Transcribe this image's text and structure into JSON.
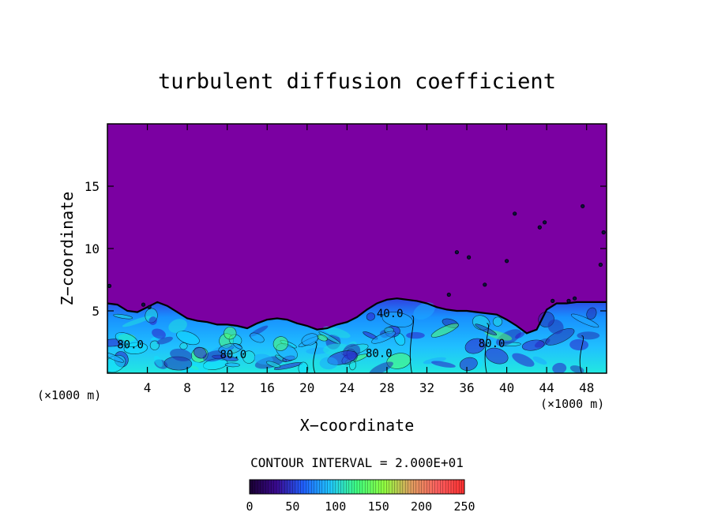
{
  "chart_data": {
    "type": "heatmap",
    "title": "turbulent diffusion coefficient",
    "xlabel": "X−coordinate",
    "ylabel": "Z−coordinate",
    "x_unit_left": "(×1000 m)",
    "x_unit_right": "(×1000 m)",
    "xlim": [
      0,
      50
    ],
    "ylim": [
      0,
      20
    ],
    "xticks": [
      4,
      8,
      12,
      16,
      20,
      24,
      28,
      32,
      36,
      40,
      44,
      48
    ],
    "yticks": [
      5,
      10,
      15
    ],
    "contour_interval_text": "CONTOUR INTERVAL = 2.000E+01",
    "contour_labels": [
      {
        "text": "80.0",
        "x": 2.3,
        "z": 2.0
      },
      {
        "text": "80.0",
        "x": 12.6,
        "z": 1.2
      },
      {
        "text": "80.0",
        "x": 27.2,
        "z": 1.3
      },
      {
        "text": "40.0",
        "x": 28.3,
        "z": 4.5
      },
      {
        "text": "80.0",
        "x": 38.5,
        "z": 2.1
      }
    ],
    "boundary_layer_top": [
      [
        0,
        5.6
      ],
      [
        1,
        5.5
      ],
      [
        2,
        5.0
      ],
      [
        3,
        4.9
      ],
      [
        4,
        5.3
      ],
      [
        5,
        5.7
      ],
      [
        6,
        5.4
      ],
      [
        7,
        4.9
      ],
      [
        8,
        4.4
      ],
      [
        9,
        4.2
      ],
      [
        10,
        4.1
      ],
      [
        11,
        3.9
      ],
      [
        12,
        3.9
      ],
      [
        13,
        3.8
      ],
      [
        14,
        3.6
      ],
      [
        15,
        4.0
      ],
      [
        16,
        4.3
      ],
      [
        17,
        4.4
      ],
      [
        18,
        4.3
      ],
      [
        19,
        4.0
      ],
      [
        20,
        3.8
      ],
      [
        21,
        3.5
      ],
      [
        22,
        3.6
      ],
      [
        23,
        3.9
      ],
      [
        24,
        4.1
      ],
      [
        25,
        4.5
      ],
      [
        26,
        5.1
      ],
      [
        27,
        5.6
      ],
      [
        28,
        5.9
      ],
      [
        29,
        6.0
      ],
      [
        30,
        5.9
      ],
      [
        31,
        5.8
      ],
      [
        32,
        5.6
      ],
      [
        33,
        5.3
      ],
      [
        34,
        5.1
      ],
      [
        35,
        5.0
      ],
      [
        36,
        5.0
      ],
      [
        37,
        4.9
      ],
      [
        38,
        4.8
      ],
      [
        39,
        4.7
      ],
      [
        40,
        4.3
      ],
      [
        41,
        3.8
      ],
      [
        42,
        3.2
      ],
      [
        43,
        3.5
      ],
      [
        44,
        5.1
      ],
      [
        45,
        5.6
      ],
      [
        46,
        5.6
      ],
      [
        47,
        5.7
      ],
      [
        48,
        5.7
      ],
      [
        49,
        5.7
      ],
      [
        50,
        5.7
      ]
    ],
    "colorbar": {
      "min": 0,
      "max": 250,
      "ticks": [
        "0",
        "50",
        "100",
        "150",
        "200",
        "250"
      ],
      "colors": [
        "#1a0033",
        "#3a0a90",
        "#2060ff",
        "#20c8ff",
        "#40ff80",
        "#90ff40",
        "#e0a060",
        "#ff6060",
        "#ff3030"
      ]
    },
    "colors": {
      "background": "#7b00a2",
      "low": "#2b1cc8",
      "mid": "#1ea8ff",
      "high": "#20e0e0",
      "peak": "#50ff70"
    },
    "grid": false,
    "legend": "colorbar-bottom"
  }
}
